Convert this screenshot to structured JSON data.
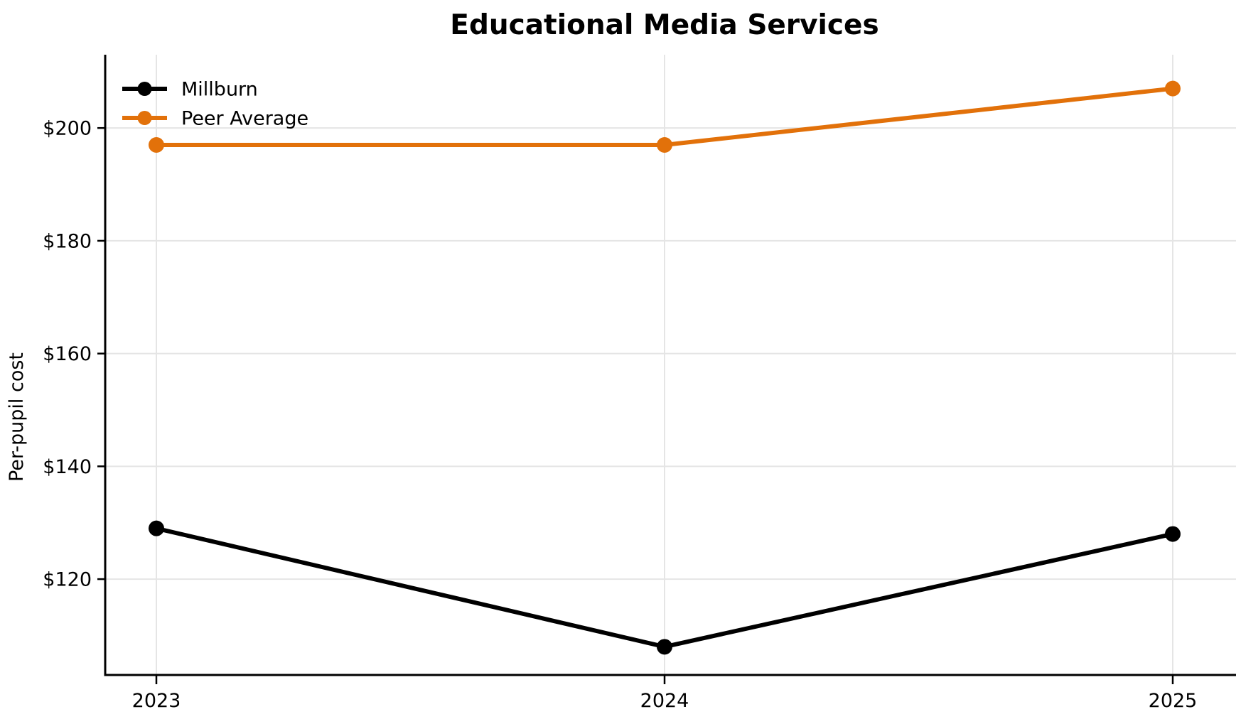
{
  "chart_data": {
    "type": "line",
    "title": "Educational Media Services",
    "xlabel": "",
    "ylabel": "Per-pupil cost",
    "categories": [
      "2023",
      "2024",
      "2025"
    ],
    "series": [
      {
        "name": "Millburn",
        "color": "#000000",
        "values": [
          129,
          108,
          128
        ]
      },
      {
        "name": "Peer Average",
        "color": "#e2710a",
        "values": [
          197,
          197,
          207
        ]
      }
    ],
    "yticks": [
      120,
      140,
      160,
      180,
      200
    ],
    "ytick_labels": [
      "$120",
      "$140",
      "$160",
      "$180",
      "$200"
    ],
    "ylim": [
      103,
      213
    ],
    "grid": true,
    "legend_position": "upper left",
    "colors": {
      "grid": "#e5e5e5",
      "spine": "#000000",
      "text": "#000000",
      "background": "#ffffff"
    }
  }
}
